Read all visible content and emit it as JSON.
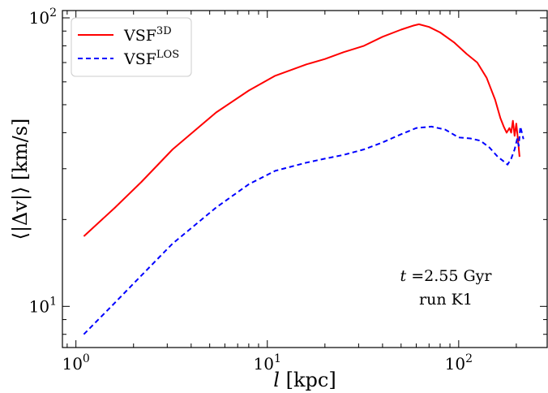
{
  "chart_data": {
    "type": "line",
    "x_scale": "log",
    "y_scale": "log",
    "xlim": [
      0.85,
      290
    ],
    "ylim": [
      7.2,
      106
    ],
    "xlabel": "l [kpc]",
    "ylabel": "⟨|Δv|⟩ [km/s]",
    "x_ticks": [
      {
        "value": 1,
        "base": "10",
        "exp": "0"
      },
      {
        "value": 10,
        "base": "10",
        "exp": "1"
      },
      {
        "value": 100,
        "base": "10",
        "exp": "2"
      }
    ],
    "y_ticks": [
      {
        "value": 10,
        "base": "10",
        "exp": "1"
      },
      {
        "value": 100,
        "base": "10",
        "exp": "2"
      }
    ],
    "legend_position": "top-left",
    "annotations": {
      "line1_var": "t",
      "line1_rest": " =2.55 Gyr",
      "line2": "run K1"
    },
    "series": [
      {
        "name_base": "VSF",
        "name_sup": "3D",
        "color": "#ff0000",
        "dash": "solid",
        "points": [
          [
            1.1,
            17.5
          ],
          [
            1.6,
            22
          ],
          [
            2.2,
            27
          ],
          [
            3.2,
            35
          ],
          [
            5.4,
            47
          ],
          [
            8,
            56
          ],
          [
            11,
            63
          ],
          [
            16,
            69
          ],
          [
            20,
            72
          ],
          [
            25,
            76
          ],
          [
            32,
            80
          ],
          [
            40,
            86
          ],
          [
            50,
            91
          ],
          [
            58,
            94
          ],
          [
            62,
            95
          ],
          [
            70,
            93
          ],
          [
            80,
            89
          ],
          [
            95,
            82
          ],
          [
            110,
            75
          ],
          [
            125,
            70
          ],
          [
            140,
            62
          ],
          [
            155,
            52
          ],
          [
            165,
            45
          ],
          [
            172,
            42
          ],
          [
            178,
            40
          ],
          [
            184,
            41.5
          ],
          [
            188,
            40
          ],
          [
            192,
            44
          ],
          [
            196,
            39
          ],
          [
            200,
            43
          ],
          [
            204,
            38
          ],
          [
            208,
            33
          ]
        ]
      },
      {
        "name_base": "VSF",
        "name_sup": "LOS",
        "color": "#0000ff",
        "dash": "dashed",
        "points": [
          [
            1.1,
            8
          ],
          [
            1.6,
            10.3
          ],
          [
            2.2,
            12.8
          ],
          [
            3.2,
            16.5
          ],
          [
            5.4,
            22
          ],
          [
            8,
            26.5
          ],
          [
            11,
            29.5
          ],
          [
            16,
            31.5
          ],
          [
            20,
            32.5
          ],
          [
            25,
            33.5
          ],
          [
            32,
            35
          ],
          [
            40,
            37
          ],
          [
            50,
            39.5
          ],
          [
            60,
            41.5
          ],
          [
            72,
            42
          ],
          [
            85,
            41
          ],
          [
            100,
            38.5
          ],
          [
            115,
            38.2
          ],
          [
            130,
            37.5
          ],
          [
            145,
            35.5
          ],
          [
            160,
            33
          ],
          [
            170,
            32
          ],
          [
            180,
            31
          ],
          [
            188,
            32.5
          ],
          [
            196,
            35
          ],
          [
            202,
            38
          ],
          [
            206,
            36
          ],
          [
            210,
            42
          ],
          [
            214,
            40
          ],
          [
            218,
            38
          ]
        ]
      }
    ]
  }
}
